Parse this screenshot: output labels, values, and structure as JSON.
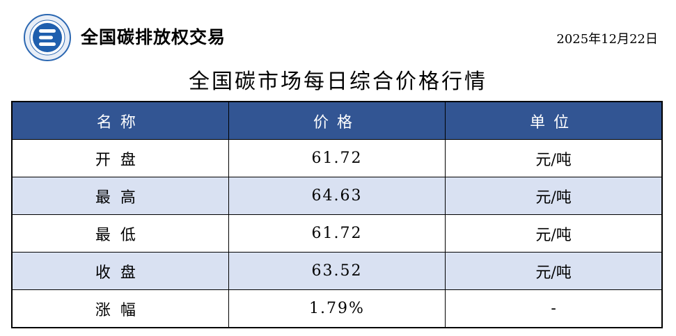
{
  "header": {
    "brand": "全国碳排放权交易",
    "date": "2025年12月22日"
  },
  "title": "全国碳市场每日综合价格行情",
  "table": {
    "columns": [
      "名称",
      "价格",
      "单位"
    ],
    "rows": [
      {
        "name": "开盘",
        "price": "61.72",
        "unit": "元/吨"
      },
      {
        "name": "最高",
        "price": "64.63",
        "unit": "元/吨"
      },
      {
        "name": "最低",
        "price": "61.72",
        "unit": "元/吨"
      },
      {
        "name": "收盘",
        "price": "63.52",
        "unit": "元/吨"
      },
      {
        "name": "涨幅",
        "price": "1.79%",
        "unit": "-"
      }
    ]
  },
  "colors": {
    "header_bg": "#325593",
    "alt_row": "#d9e1f2"
  }
}
